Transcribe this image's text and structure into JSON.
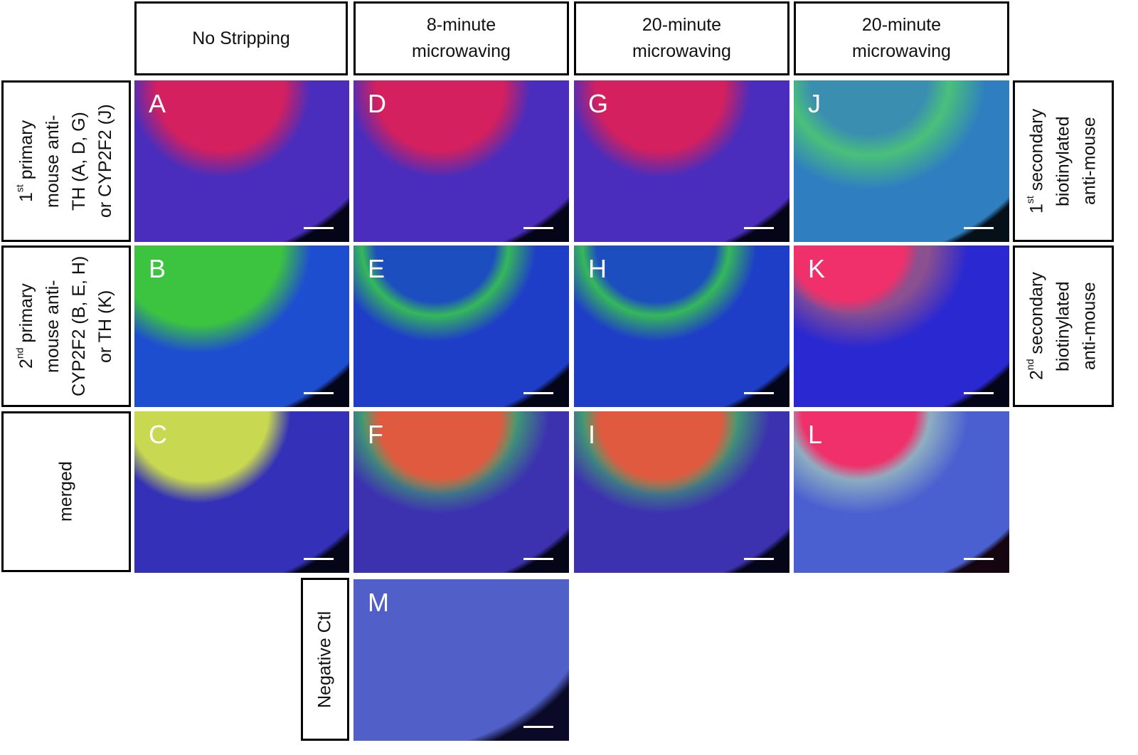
{
  "column_headers": [
    "No Stripping",
    "8-minute\nmicrowaving",
    "20-minute\nmicrowaving",
    "20-minute\nmicrowaving"
  ],
  "row_labels": {
    "row1": {
      "sup_prefix": "1",
      "sup": "st",
      "text": " primary\nmouse anti-\nTH (A, D, G)\nor CYP2F2 (J)"
    },
    "row2": {
      "sup_prefix": "2",
      "sup": "nd",
      "text": " primary\nmouse anti-\nCYP2F2 (B, E, H)\nor TH (K)"
    },
    "row3": "merged",
    "negative": "Negative Ctl"
  },
  "right_labels": {
    "row1": {
      "sup_prefix": "1",
      "sup": "st",
      "text": " secondary\nbiotinylated\nanti-mouse"
    },
    "row2": {
      "sup_prefix": "2",
      "sup": "nd",
      "text": " secondary\nbiotinylated\nanti-mouse"
    }
  },
  "panels": [
    "A",
    "B",
    "C",
    "D",
    "E",
    "F",
    "G",
    "H",
    "I",
    "J",
    "K",
    "L",
    "M"
  ]
}
